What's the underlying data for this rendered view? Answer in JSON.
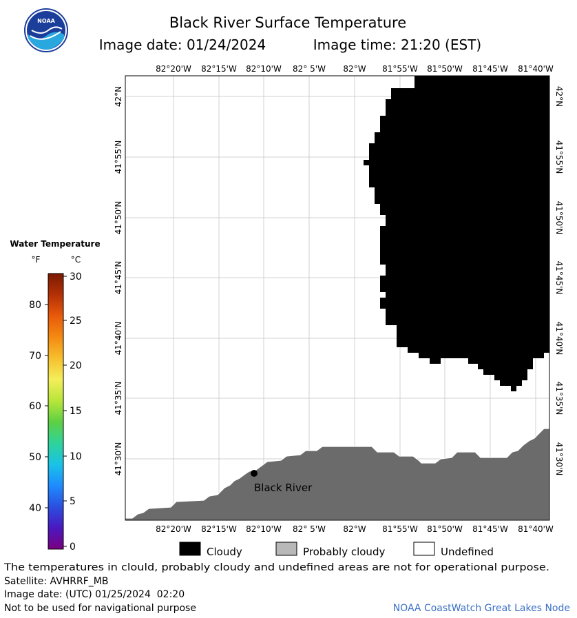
{
  "header": {
    "title": "Black River Surface Temperature",
    "image_date_label": "Image date: 01/24/2024",
    "image_time_label": "Image time: 21:20 (EST)",
    "logo_text": "NOAA"
  },
  "map": {
    "lon_labels": [
      "82°20'W",
      "82°15'W",
      "82°10'W",
      "82° 5'W",
      "82°W",
      "81°55'W",
      "81°50'W",
      "81°45'W",
      "81°40'W"
    ],
    "lat_labels": [
      "42°N",
      "41°55'N",
      "41°50'N",
      "41°45'N",
      "41°40'N",
      "41°35'N",
      "41°30'N"
    ],
    "place_label": "Black River",
    "colors": {
      "cloud": "#000000",
      "land": "#6b6b6b",
      "water": "#ffffff",
      "grid": "#d0d0d0"
    }
  },
  "colorbar": {
    "title": "Water Temperature",
    "unit_f": "°F",
    "unit_c": "°C",
    "f_ticks": [
      "80",
      "70",
      "60",
      "50",
      "40"
    ],
    "c_ticks": [
      "30",
      "25",
      "20",
      "15",
      "10",
      "5",
      "0"
    ],
    "gradient": [
      "#7a0080",
      "#4a18c0",
      "#2b4fe0",
      "#1e8cff",
      "#19c3e6",
      "#2fd39a",
      "#5ed043",
      "#b8e63a",
      "#f4ee5a",
      "#f6bf2e",
      "#f48a12",
      "#e85a0a",
      "#b43006",
      "#7a1a02"
    ]
  },
  "legend": {
    "cloudy": "Cloudy",
    "probably_cloudy": "Probably cloudy",
    "undefined": "Undefined",
    "colors": {
      "cloudy": "#000000",
      "probably_cloudy": "#b8b8b8",
      "undefined": "#ffffff"
    }
  },
  "footer": {
    "disclaimer": "The temperatures in clould, probably cloudy and undefined areas are not for operational purpose.",
    "satellite": "Satellite: AVHRRF_MB",
    "utc_date": "Image date: (UTC) 01/25/2024  02:20",
    "nav_warning": "Not to be used for navigational purpose",
    "credit": "NOAA CoastWatch Great Lakes Node",
    "credit_color": "#3a6fc4"
  }
}
